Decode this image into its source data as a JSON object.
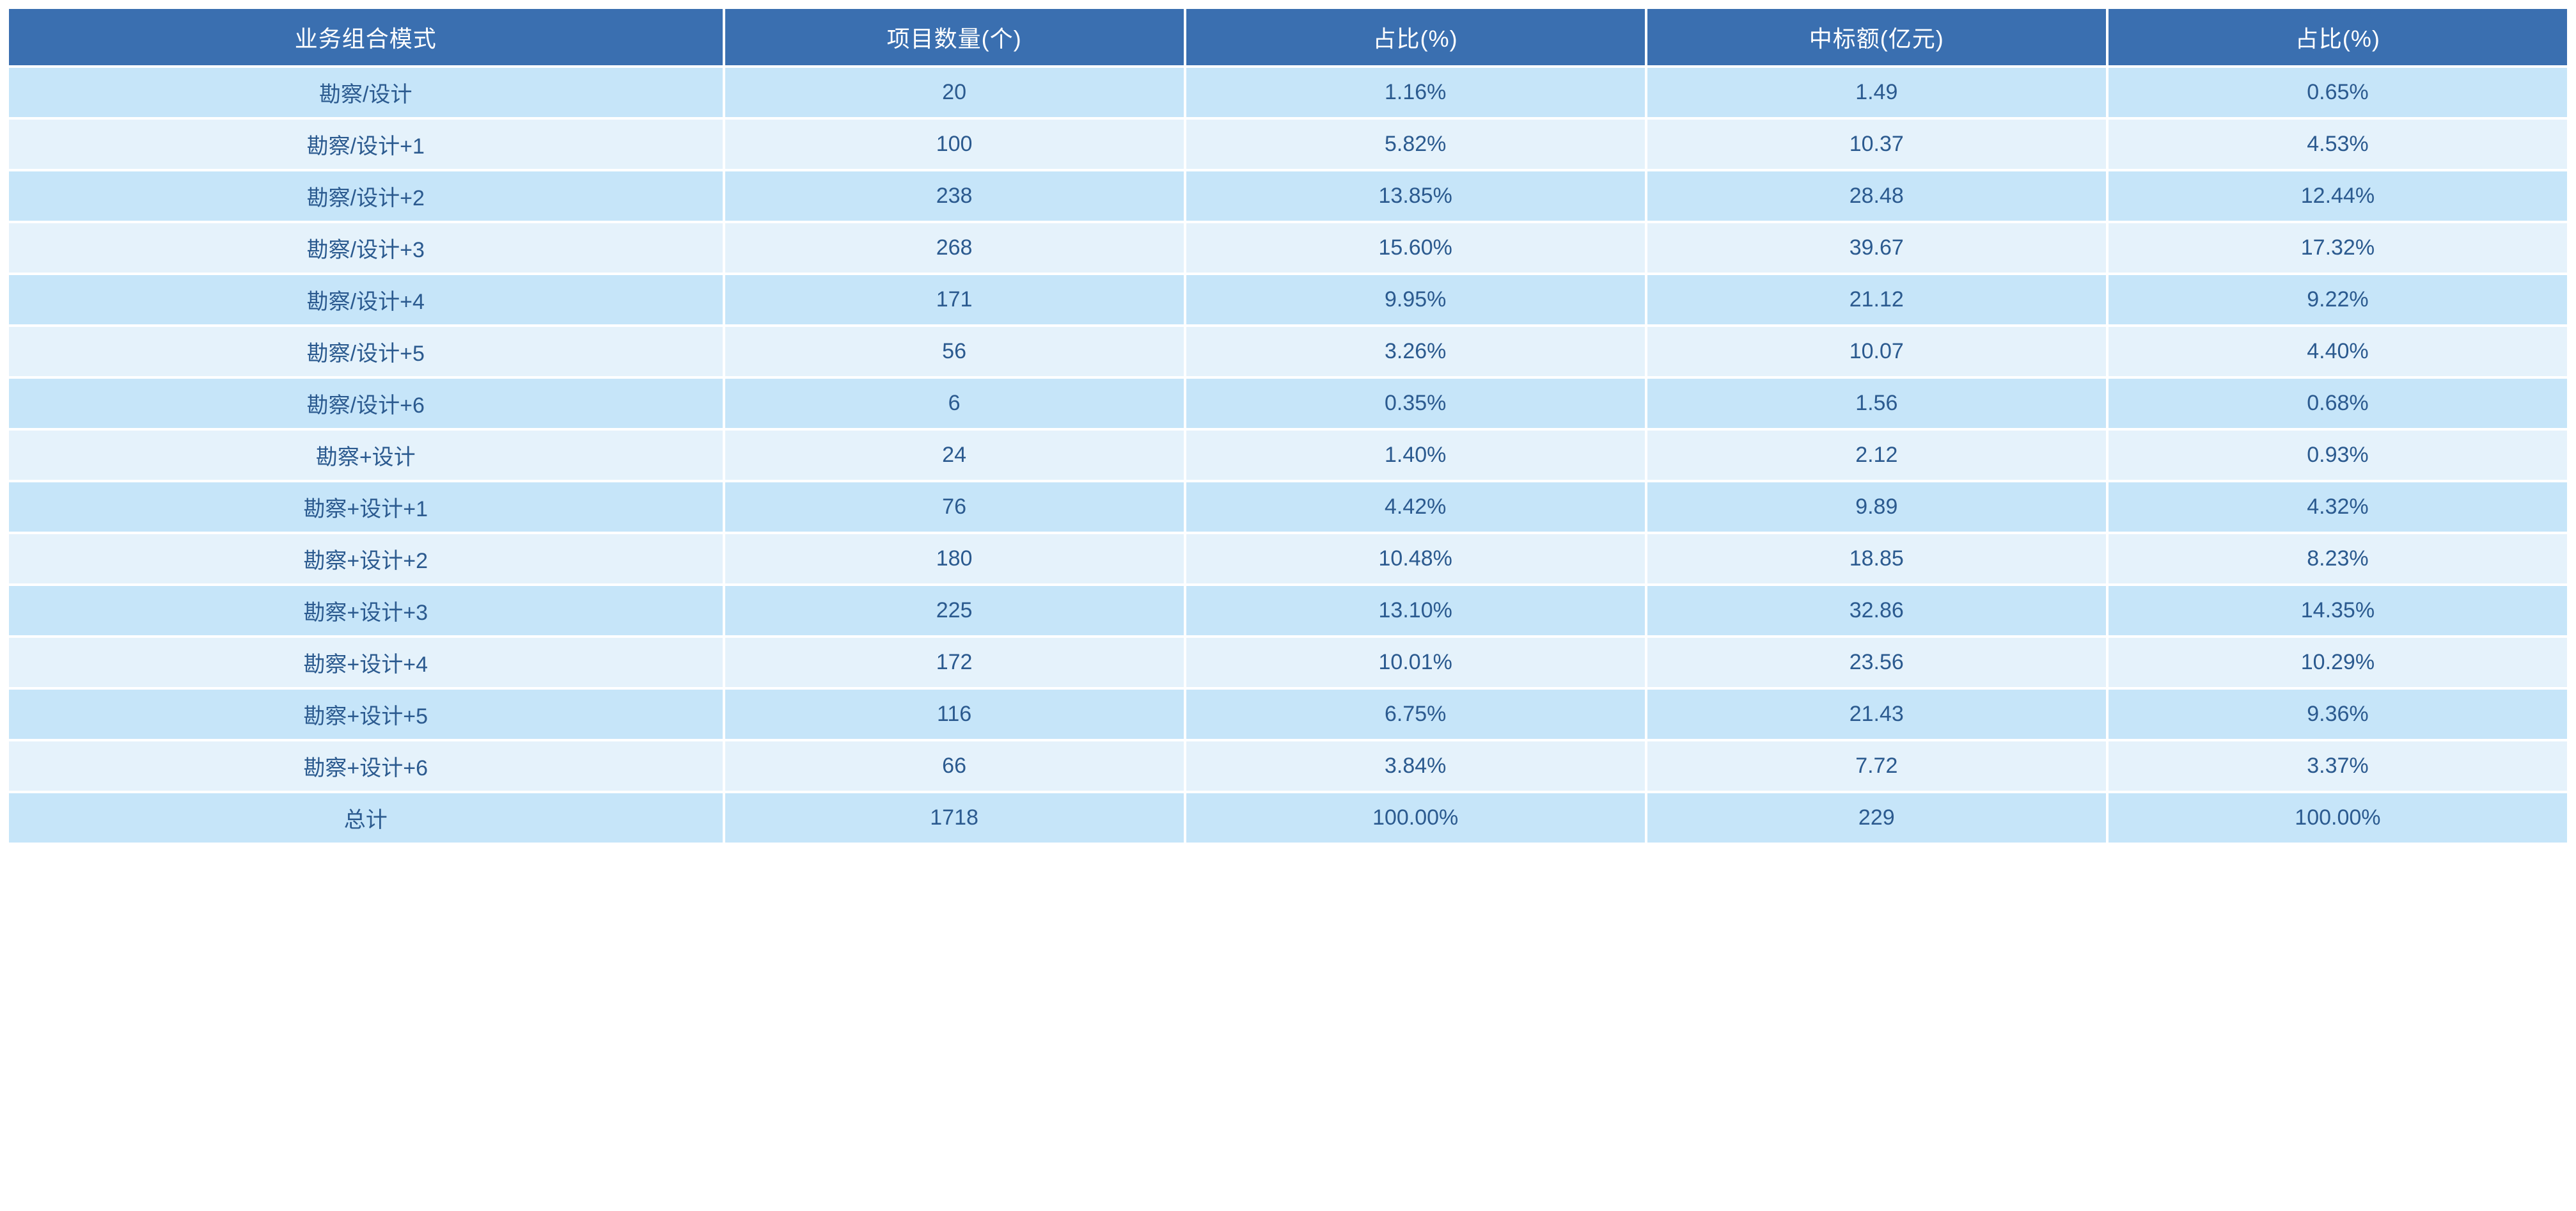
{
  "table": {
    "type": "table",
    "header_bg_color": "#3a6fb0",
    "header_text_color": "#ffffff",
    "row_odd_bg_color": "#c6e5f9",
    "row_even_bg_color": "#e5f2fb",
    "cell_text_color": "#2b5a8f",
    "header_fontsize": 36,
    "cell_fontsize": 34,
    "border_spacing": 4,
    "columns": [
      {
        "label": "业务组合模式",
        "width": "28%",
        "align": "center"
      },
      {
        "label": "项目数量(个)",
        "width": "18%",
        "align": "center"
      },
      {
        "label": "占比(%)",
        "width": "18%",
        "align": "center"
      },
      {
        "label": "中标额(亿元)",
        "width": "18%",
        "align": "center"
      },
      {
        "label": "占比(%)",
        "width": "18%",
        "align": "center"
      }
    ],
    "rows": [
      {
        "c0": "勘察/设计",
        "c1": "20",
        "c2": "1.16%",
        "c3": "1.49",
        "c4": "0.65%"
      },
      {
        "c0": "勘察/设计+1",
        "c1": "100",
        "c2": "5.82%",
        "c3": "10.37",
        "c4": "4.53%"
      },
      {
        "c0": "勘察/设计+2",
        "c1": "238",
        "c2": "13.85%",
        "c3": "28.48",
        "c4": "12.44%"
      },
      {
        "c0": "勘察/设计+3",
        "c1": "268",
        "c2": "15.60%",
        "c3": "39.67",
        "c4": "17.32%"
      },
      {
        "c0": "勘察/设计+4",
        "c1": "171",
        "c2": "9.95%",
        "c3": "21.12",
        "c4": "9.22%"
      },
      {
        "c0": "勘察/设计+5",
        "c1": "56",
        "c2": "3.26%",
        "c3": "10.07",
        "c4": "4.40%"
      },
      {
        "c0": "勘察/设计+6",
        "c1": "6",
        "c2": "0.35%",
        "c3": "1.56",
        "c4": "0.68%"
      },
      {
        "c0": "勘察+设计",
        "c1": "24",
        "c2": "1.40%",
        "c3": "2.12",
        "c4": "0.93%"
      },
      {
        "c0": "勘察+设计+1",
        "c1": "76",
        "c2": "4.42%",
        "c3": "9.89",
        "c4": "4.32%"
      },
      {
        "c0": "勘察+设计+2",
        "c1": "180",
        "c2": "10.48%",
        "c3": "18.85",
        "c4": "8.23%"
      },
      {
        "c0": "勘察+设计+3",
        "c1": "225",
        "c2": "13.10%",
        "c3": "32.86",
        "c4": "14.35%"
      },
      {
        "c0": "勘察+设计+4",
        "c1": "172",
        "c2": "10.01%",
        "c3": "23.56",
        "c4": "10.29%"
      },
      {
        "c0": "勘察+设计+5",
        "c1": "116",
        "c2": "6.75%",
        "c3": "21.43",
        "c4": "9.36%"
      },
      {
        "c0": "勘察+设计+6",
        "c1": "66",
        "c2": "3.84%",
        "c3": "7.72",
        "c4": "3.37%"
      },
      {
        "c0": "总计",
        "c1": "1718",
        "c2": "100.00%",
        "c3": "229",
        "c4": "100.00%"
      }
    ]
  }
}
